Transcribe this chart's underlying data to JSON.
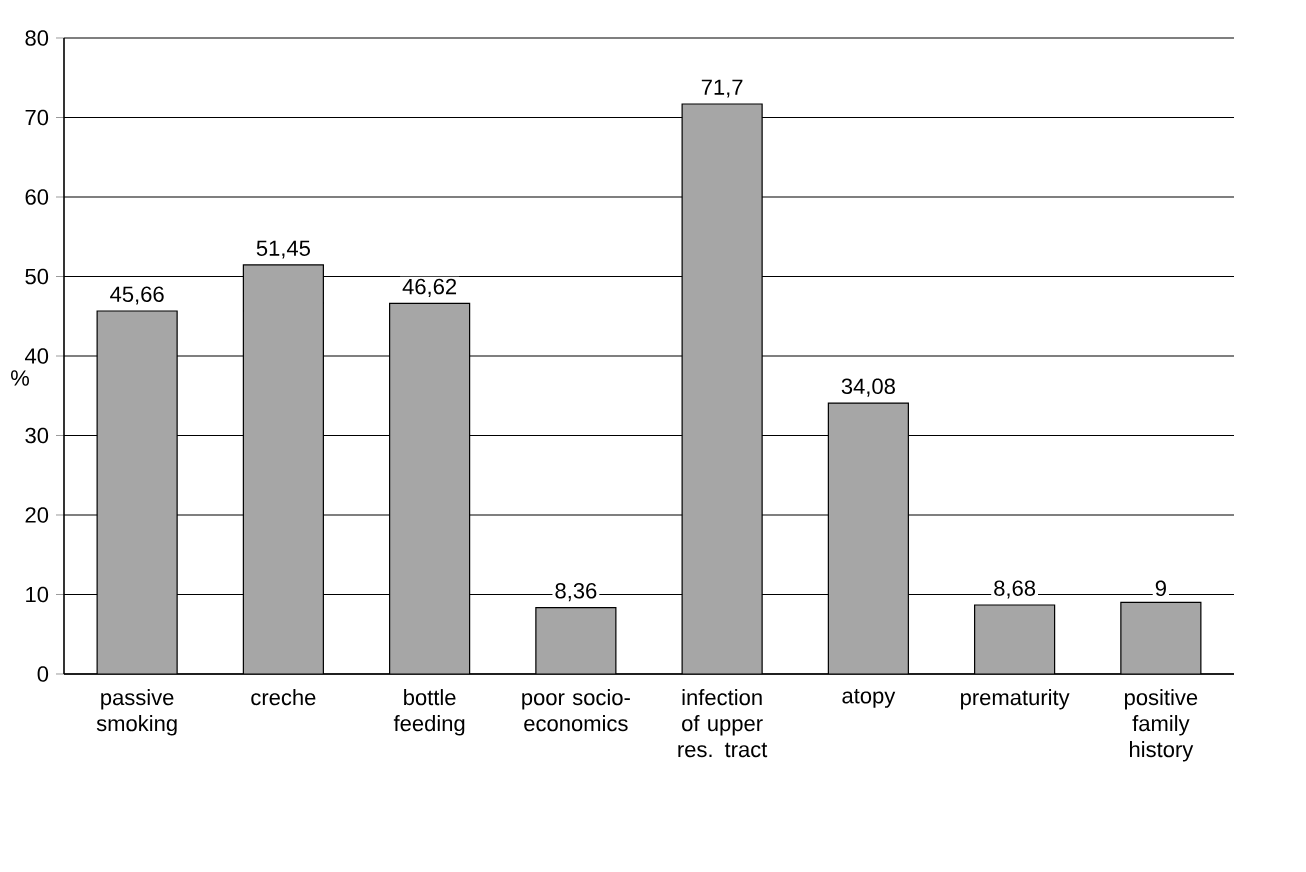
{
  "chart_data": {
    "type": "bar",
    "ylabel": "%",
    "categories": [
      "passive smoking",
      "creche",
      "bottle feeding",
      "poor socio-economics",
      "infection of upper res. tract",
      "atopy",
      "prematurity",
      "positive family history"
    ],
    "values": [
      45.66,
      51.45,
      46.62,
      8.36,
      71.7,
      34.08,
      8.68,
      9
    ],
    "value_labels": [
      "45,66",
      "51,45",
      "46,62",
      "8,36",
      "71,7",
      "34,08",
      "8,68",
      "9"
    ],
    "color": "#a6a6a6",
    "ylim": [
      0,
      80
    ],
    "yticks": [
      0,
      10,
      20,
      30,
      40,
      50,
      60,
      70,
      80
    ],
    "grid": "y"
  }
}
